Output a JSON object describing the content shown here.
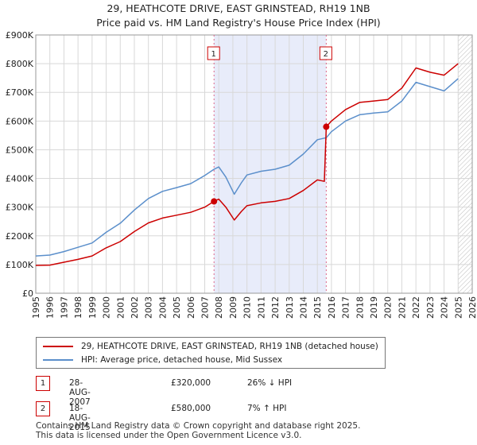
{
  "chart_data": {
    "type": "line",
    "title": "29, HEATHCOTE DRIVE, EAST GRINSTEAD, RH19 1NB",
    "subtitle": "Price paid vs. HM Land Registry's House Price Index (HPI)",
    "xlim": [
      1995,
      2026
    ],
    "ylim": [
      0,
      900000
    ],
    "y_ticks": [
      {
        "value": 0,
        "label": "£0"
      },
      {
        "value": 100000,
        "label": "£100K"
      },
      {
        "value": 200000,
        "label": "£200K"
      },
      {
        "value": 300000,
        "label": "£300K"
      },
      {
        "value": 400000,
        "label": "£400K"
      },
      {
        "value": 500000,
        "label": "£500K"
      },
      {
        "value": 600000,
        "label": "£600K"
      },
      {
        "value": 700000,
        "label": "£700K"
      },
      {
        "value": 800000,
        "label": "£800K"
      },
      {
        "value": 900000,
        "label": "£900K"
      }
    ],
    "x_ticks": [
      "1995",
      "1996",
      "1997",
      "1998",
      "1999",
      "2000",
      "2001",
      "2002",
      "2003",
      "2004",
      "2005",
      "2006",
      "2007",
      "2008",
      "2009",
      "2010",
      "2011",
      "2012",
      "2013",
      "2014",
      "2015",
      "2016",
      "2017",
      "2018",
      "2019",
      "2020",
      "2021",
      "2022",
      "2023",
      "2024",
      "2025",
      "2026"
    ],
    "grid": true,
    "shaded_period": [
      2007.66,
      2015.63
    ],
    "future_hatch_from": 2025.0,
    "markers": [
      {
        "label": "1",
        "x": 2007.66
      },
      {
        "label": "2",
        "x": 2015.63
      }
    ],
    "sale_points": [
      {
        "x": 2007.66,
        "y": 320000
      },
      {
        "x": 2015.63,
        "y": 580000
      }
    ],
    "series": [
      {
        "name": "29, HEATHCOTE DRIVE, EAST GRINSTEAD, RH19 1NB (detached house)",
        "color": "#cc0000",
        "points": [
          [
            1995,
            97000
          ],
          [
            1996,
            98000
          ],
          [
            1997,
            108000
          ],
          [
            1998,
            118000
          ],
          [
            1999,
            130000
          ],
          [
            2000,
            158000
          ],
          [
            2001,
            180000
          ],
          [
            2002,
            215000
          ],
          [
            2003,
            245000
          ],
          [
            2004,
            262000
          ],
          [
            2005,
            272000
          ],
          [
            2006,
            282000
          ],
          [
            2007,
            300000
          ],
          [
            2007.66,
            320000
          ],
          [
            2008,
            328000
          ],
          [
            2008.5,
            300000
          ],
          [
            2009.1,
            255000
          ],
          [
            2009.6,
            285000
          ],
          [
            2010,
            305000
          ],
          [
            2011,
            315000
          ],
          [
            2012,
            320000
          ],
          [
            2013,
            330000
          ],
          [
            2014,
            358000
          ],
          [
            2015,
            395000
          ],
          [
            2015.5,
            390000
          ],
          [
            2015.63,
            580000
          ],
          [
            2016,
            600000
          ],
          [
            2017,
            640000
          ],
          [
            2018,
            665000
          ],
          [
            2019,
            670000
          ],
          [
            2020,
            675000
          ],
          [
            2021,
            715000
          ],
          [
            2022,
            785000
          ],
          [
            2023,
            770000
          ],
          [
            2024,
            760000
          ],
          [
            2025,
            800000
          ]
        ]
      },
      {
        "name": "HPI: Average price, detached house, Mid Sussex",
        "color": "#5b8fcb",
        "points": [
          [
            1995,
            130000
          ],
          [
            1996,
            133000
          ],
          [
            1997,
            145000
          ],
          [
            1998,
            160000
          ],
          [
            1999,
            175000
          ],
          [
            2000,
            212000
          ],
          [
            2001,
            244000
          ],
          [
            2002,
            290000
          ],
          [
            2003,
            330000
          ],
          [
            2004,
            355000
          ],
          [
            2005,
            368000
          ],
          [
            2006,
            382000
          ],
          [
            2007,
            410000
          ],
          [
            2007.66,
            432000
          ],
          [
            2008,
            440000
          ],
          [
            2008.5,
            405000
          ],
          [
            2009.1,
            345000
          ],
          [
            2009.6,
            385000
          ],
          [
            2010,
            412000
          ],
          [
            2011,
            425000
          ],
          [
            2012,
            432000
          ],
          [
            2013,
            446000
          ],
          [
            2014,
            485000
          ],
          [
            2015,
            535000
          ],
          [
            2015.63,
            542000
          ],
          [
            2016,
            563000
          ],
          [
            2017,
            600000
          ],
          [
            2018,
            622000
          ],
          [
            2019,
            628000
          ],
          [
            2020,
            632000
          ],
          [
            2021,
            670000
          ],
          [
            2022,
            735000
          ],
          [
            2023,
            720000
          ],
          [
            2024,
            705000
          ],
          [
            2025,
            748000
          ]
        ]
      }
    ]
  },
  "legend": {
    "property_label": "29, HEATHCOTE DRIVE, EAST GRINSTEAD, RH19 1NB (detached house)",
    "hpi_label": "HPI: Average price, detached house, Mid Sussex",
    "property_color": "#cc0000",
    "hpi_color": "#5b8fcb"
  },
  "sales": [
    {
      "num": "1",
      "date": "28-AUG-2007",
      "price": "£320,000",
      "hpi": "26% ↓ HPI"
    },
    {
      "num": "2",
      "date": "18-AUG-2015",
      "price": "£580,000",
      "hpi": "7% ↑ HPI"
    }
  ],
  "footer": {
    "line1": "Contains HM Land Registry data © Crown copyright and database right 2025.",
    "line2": "This data is licensed under the Open Government Licence v3.0."
  }
}
